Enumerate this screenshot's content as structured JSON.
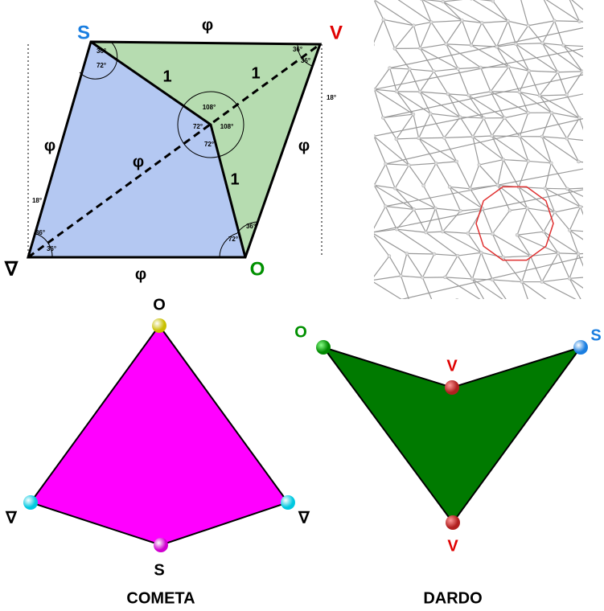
{
  "rhombus": {
    "vertices": {
      "top_left": "S",
      "top_right": "V",
      "bottom_left": "∇",
      "bottom_right": "O"
    },
    "edges": {
      "top": "φ",
      "bottom": "φ",
      "left": "φ",
      "right": "φ",
      "diagonal": "φ"
    },
    "inner_edges": [
      "1",
      "1",
      "1"
    ],
    "angles": [
      "36°",
      "72°",
      "36°",
      "36°",
      "18°",
      "108°",
      "72°",
      "108°",
      "72°",
      "18°",
      "36°",
      "36°",
      "36°",
      "72°"
    ]
  },
  "kite": {
    "vertices": {
      "top": "O",
      "left": "∇",
      "right": "∇",
      "bottom": "S"
    },
    "label": "COMETA"
  },
  "dart": {
    "vertices": {
      "left": "O",
      "right": "S",
      "middle": "V",
      "bottom": "V"
    },
    "label": "DARDO"
  }
}
